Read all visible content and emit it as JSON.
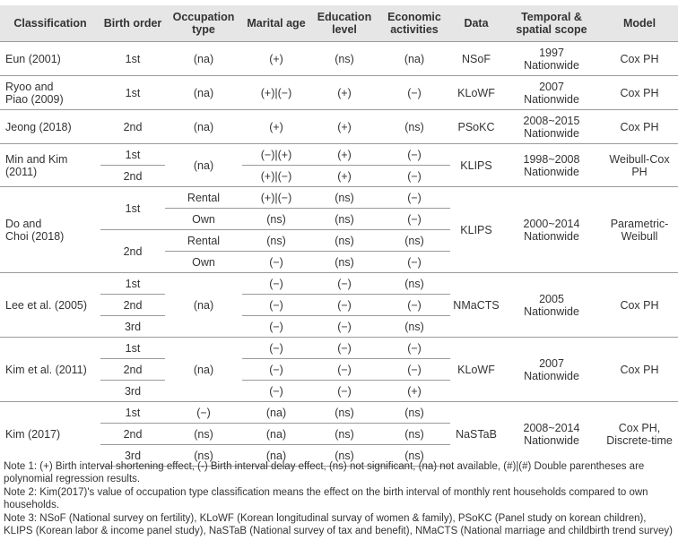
{
  "headers": {
    "classification": "Classification",
    "birth_order": "Birth order",
    "occupation": "Occupation type",
    "marital_age": "Marital age",
    "education": "Education level",
    "economic": "Economic activities",
    "data": "Data",
    "scope": "Temporal & spatial scope",
    "model": "Model"
  },
  "rows": {
    "eun": {
      "cls": "Eun (2001)",
      "bo": "1st",
      "occ": "(na)",
      "mar": "(+)",
      "edu": "(ns)",
      "eco": "(na)",
      "data": "NSoF",
      "scope1": "1997",
      "scope2": "Nationwide",
      "model": "Cox PH"
    },
    "ryoo": {
      "cls1": "Ryoo and",
      "cls2": "Piao (2009)",
      "bo": "1st",
      "occ": "(na)",
      "mar": "(+)|(−)",
      "edu": "(+)",
      "eco": "(−)",
      "data": "KLoWF",
      "scope1": "2007",
      "scope2": "Nationwide",
      "model": "Cox PH"
    },
    "jeong": {
      "cls": "Jeong (2018)",
      "bo": "2nd",
      "occ": "(na)",
      "mar": "(+)",
      "edu": "(+)",
      "eco": "(ns)",
      "data": "PSoKC",
      "scope1": "2008~2015",
      "scope2": "Nationwide",
      "model": "Cox PH"
    },
    "min": {
      "cls1": "Min and Kim",
      "cls2": "(2011)",
      "bo1": "1st",
      "bo2": "2nd",
      "occ": "(na)",
      "mar1": "(−)|(+)",
      "mar2": "(+)|(−)",
      "edu1": "(+)",
      "edu2": "(+)",
      "eco1": "(−)",
      "eco2": "(−)",
      "data": "KLIPS",
      "scope1": "1998~2008",
      "scope2": "Nationwide",
      "model1": "Weibull-Cox",
      "model2": "PH"
    },
    "do": {
      "cls1": "Do and",
      "cls2": "Choi (2018)",
      "bo1": "1st",
      "bo2": "2nd",
      "occ1": "Rental",
      "occ2": "Own",
      "occ3": "Rental",
      "occ4": "Own",
      "mar1": "(+)|(−)",
      "mar2": "(ns)",
      "mar3": "(ns)",
      "mar4": "(−)",
      "edu1": "(ns)",
      "edu2": "(ns)",
      "edu3": "(ns)",
      "edu4": "(ns)",
      "eco1": "(−)",
      "eco2": "(−)",
      "eco3": "(ns)",
      "eco4": "(−)",
      "data": "KLIPS",
      "scope1": "2000~2014",
      "scope2": "Nationwide",
      "model1": "Parametric-",
      "model2": "Weibull"
    },
    "lee": {
      "cls": "Lee et al. (2005)",
      "bo1": "1st",
      "bo2": "2nd",
      "bo3": "3rd",
      "occ": "(na)",
      "mar1": "(−)",
      "mar2": "(−)",
      "mar3": "(−)",
      "edu1": "(−)",
      "edu2": "(−)",
      "edu3": "(−)",
      "eco1": "(ns)",
      "eco2": "(−)",
      "eco3": "(ns)",
      "data": "NMaCTS",
      "scope1": "2005",
      "scope2": "Nationwide",
      "model": "Cox PH"
    },
    "kim11": {
      "cls": "Kim et al. (2011)",
      "bo1": "1st",
      "bo2": "2nd",
      "bo3": "3rd",
      "occ": "(na)",
      "mar1": "(−)",
      "mar2": "(−)",
      "mar3": "(−)",
      "edu1": "(−)",
      "edu2": "(−)",
      "edu3": "(−)",
      "eco1": "(−)",
      "eco2": "(−)",
      "eco3": "(+)",
      "data": "KLoWF",
      "scope1": "2007",
      "scope2": "Nationwide",
      "model": "Cox PH"
    },
    "kim17": {
      "cls": "Kim (2017)",
      "bo1": "1st",
      "bo2": "2nd",
      "bo3": "3rd",
      "occ1": "(−)",
      "occ2": "(ns)",
      "occ3": "(ns)",
      "mar1": "(na)",
      "mar2": "(na)",
      "mar3": "(na)",
      "edu1": "(ns)",
      "edu2": "(ns)",
      "edu3": "(ns)",
      "eco1": "(ns)",
      "eco2": "(ns)",
      "eco3": "(ns)",
      "data": "NaSTaB",
      "scope1": "2008~2014",
      "scope2": "Nationwide",
      "model1": "Cox PH,",
      "model2": "Discrete-time"
    }
  },
  "notes": {
    "n1": "Note 1: (+) Birth interval shortening effect, (-) Birth interval delay effect, (ns) not significant, (na) not available, (#)|(#) Double parentheses are polynomial regression results.",
    "n2": "Note 2: Kim(2017)'s value of occupation type classification means the effect on the birth interval of monthly rent households compared to own households.",
    "n3": "Note 3: NSoF (National survey on fertility), KLoWF (Korean longitudinal survay of women & family), PSoKC (Panel study on korean children), KLIPS (Korean labor & income panel study), NaSTaB (National survey of tax and benefit), NMaCTS (National marriage and childbirth trend survey)"
  }
}
